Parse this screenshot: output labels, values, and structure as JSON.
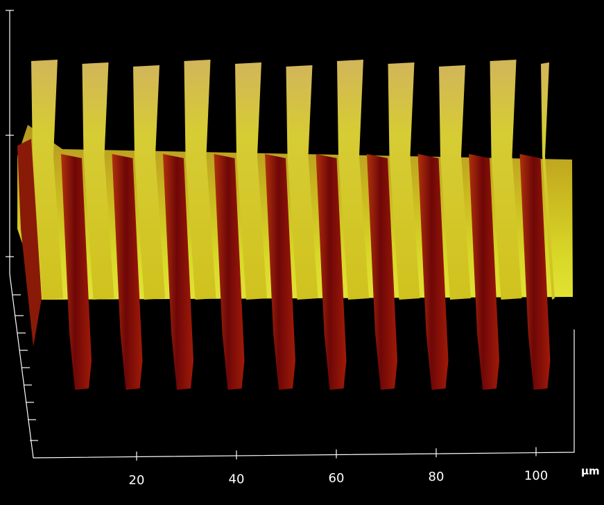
{
  "axis": {
    "ticks": [
      "20",
      "40",
      "60",
      "80",
      "100"
    ],
    "unit": "μm"
  }
}
